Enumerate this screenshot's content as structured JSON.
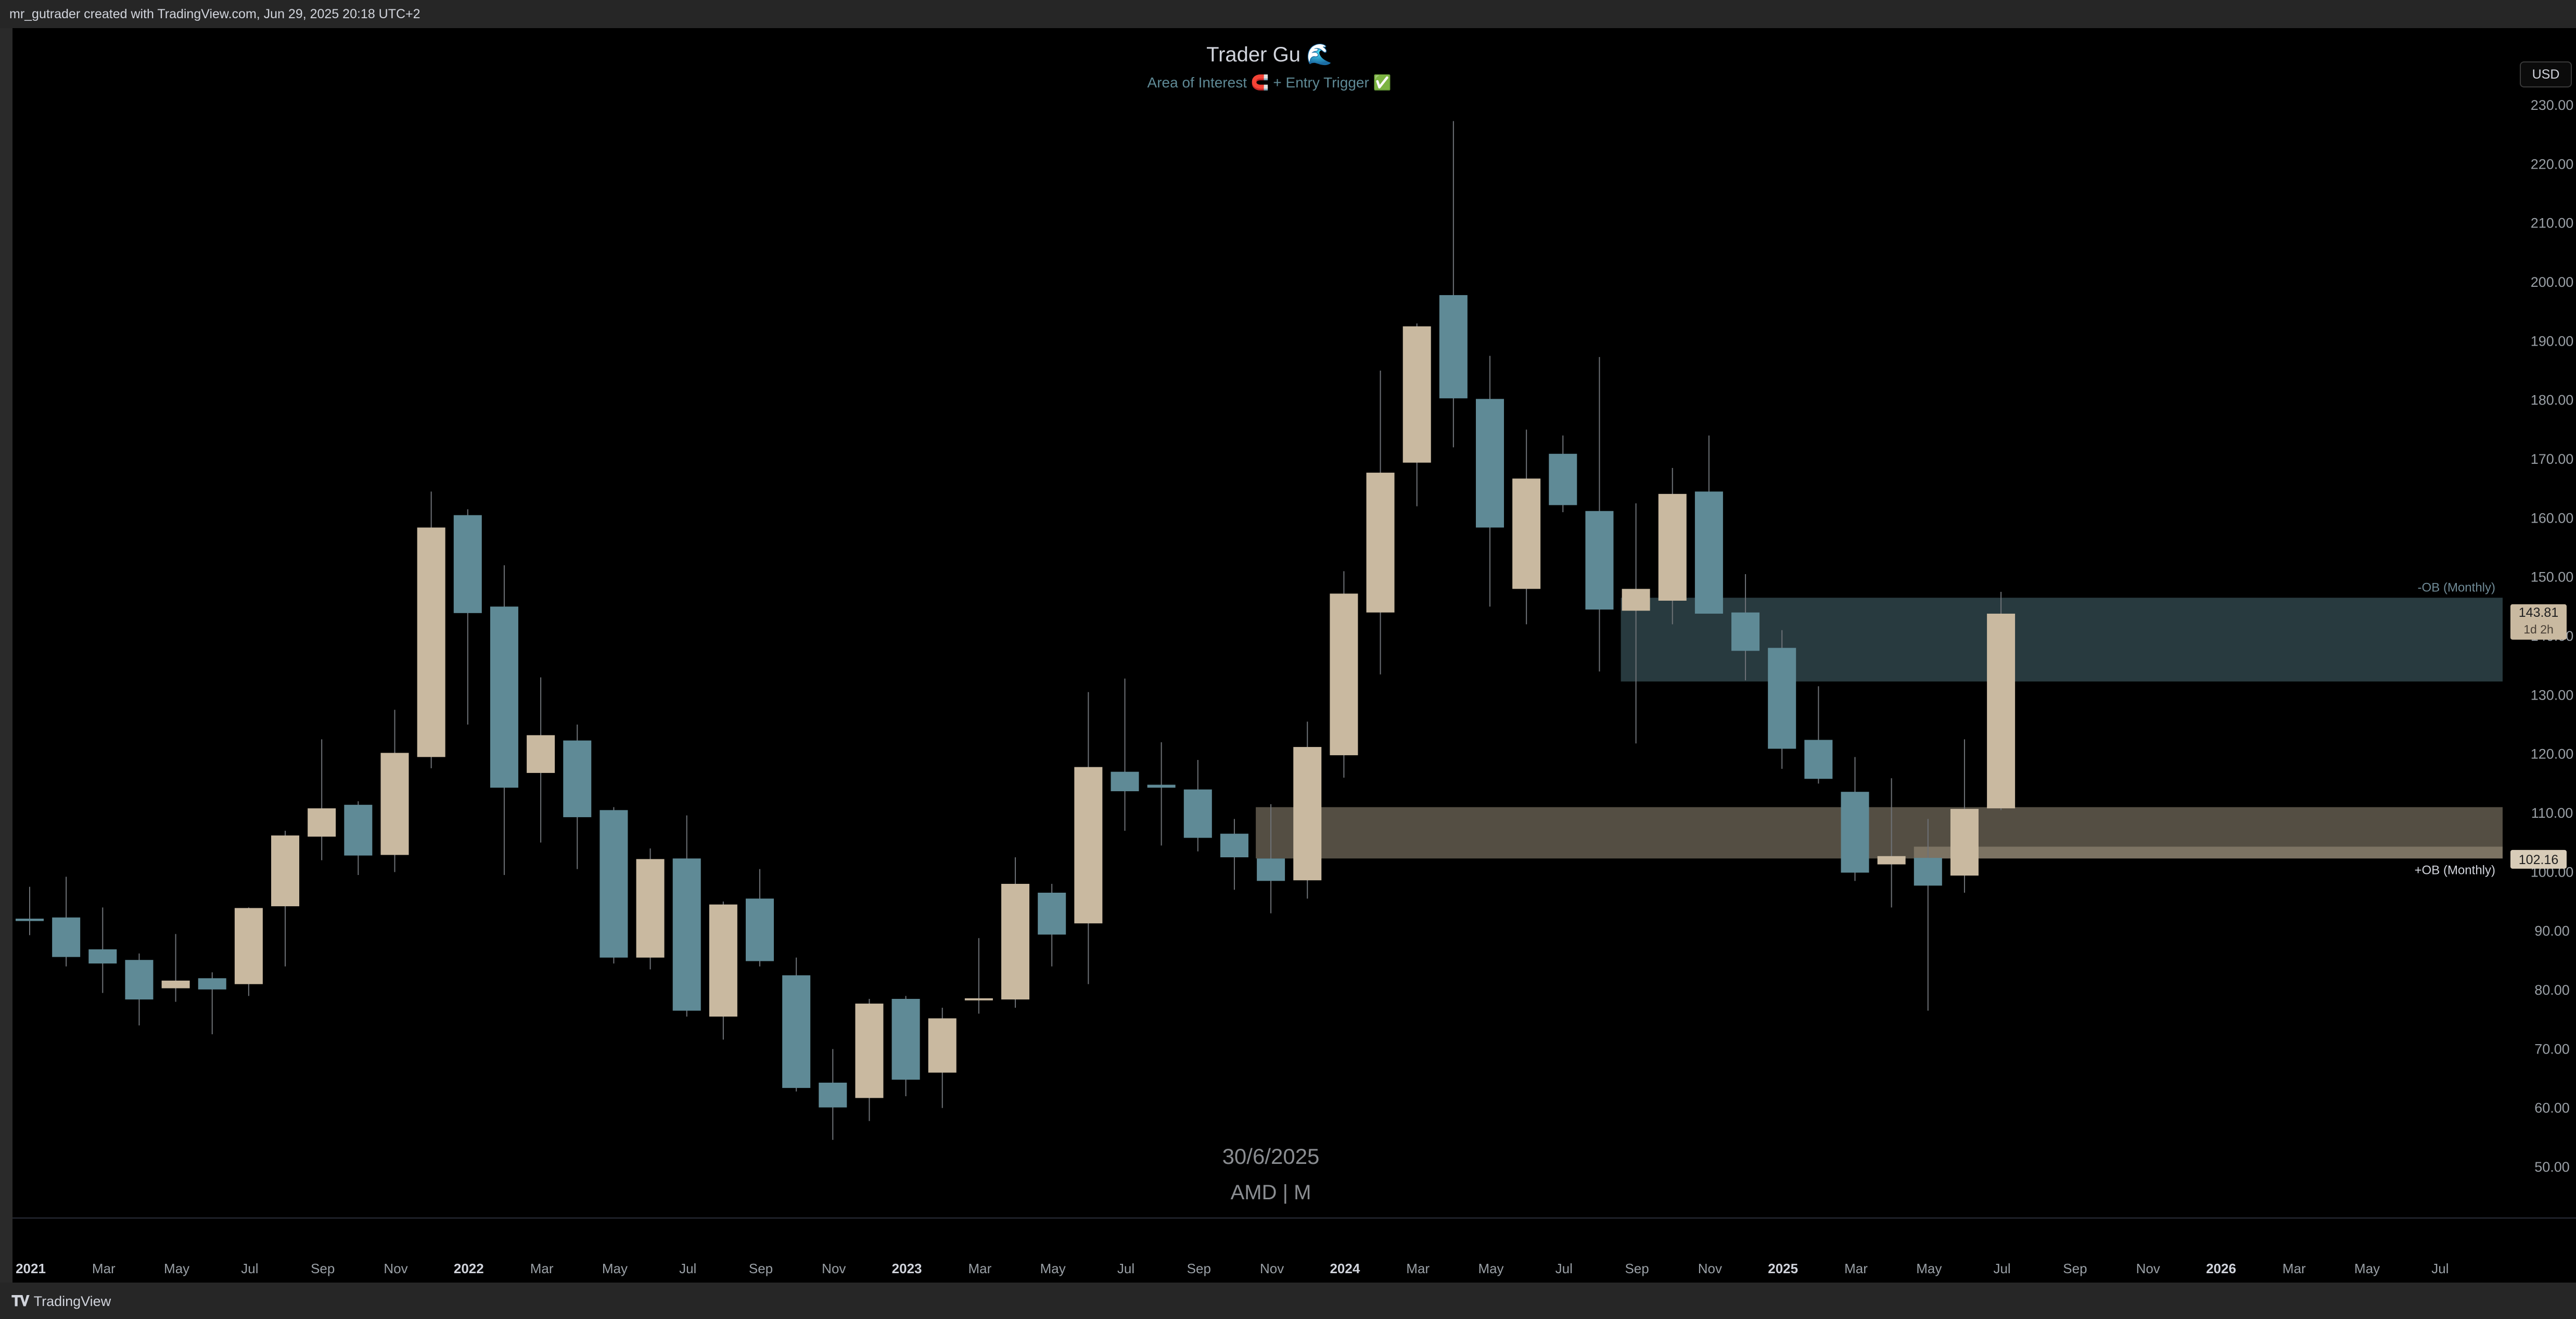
{
  "header": {
    "attribution": "mr_gutrader created with TradingView.com, Jun 29, 2025 20:18 UTC+2"
  },
  "toolbar": {
    "currency": "USD"
  },
  "footer": {
    "brand": "TradingView",
    "logo_icon": "tradingview-logo-icon"
  },
  "chart_data": {
    "type": "candlestick",
    "title": "Trader Gu 🌊",
    "subtitle": "Area of Interest 🧲 + Entry Trigger ✅",
    "watermark_date": "30/6/2025",
    "watermark_symbol": "AMD | M",
    "ylim": [
      42,
      236
    ],
    "y_ticks": [
      "50.00",
      "60.00",
      "70.00",
      "80.00",
      "90.00",
      "100.00",
      "110.00",
      "120.00",
      "130.00",
      "140.00",
      "150.00",
      "160.00",
      "170.00",
      "180.00",
      "190.00",
      "200.00",
      "210.00",
      "220.00",
      "230.00"
    ],
    "x_labels": [
      {
        "label": "2021",
        "bold": true
      },
      {
        "label": "Mar",
        "bold": false
      },
      {
        "label": "May",
        "bold": false
      },
      {
        "label": "Jul",
        "bold": false
      },
      {
        "label": "Sep",
        "bold": false
      },
      {
        "label": "Nov",
        "bold": false
      },
      {
        "label": "2022",
        "bold": true
      },
      {
        "label": "Mar",
        "bold": false
      },
      {
        "label": "May",
        "bold": false
      },
      {
        "label": "Jul",
        "bold": false
      },
      {
        "label": "Sep",
        "bold": false
      },
      {
        "label": "Nov",
        "bold": false
      },
      {
        "label": "2023",
        "bold": true
      },
      {
        "label": "Mar",
        "bold": false
      },
      {
        "label": "May",
        "bold": false
      },
      {
        "label": "Jul",
        "bold": false
      },
      {
        "label": "Sep",
        "bold": false
      },
      {
        "label": "Nov",
        "bold": false
      },
      {
        "label": "2024",
        "bold": true
      },
      {
        "label": "Mar",
        "bold": false
      },
      {
        "label": "May",
        "bold": false
      },
      {
        "label": "Jul",
        "bold": false
      },
      {
        "label": "Sep",
        "bold": false
      },
      {
        "label": "Nov",
        "bold": false
      },
      {
        "label": "2025",
        "bold": true
      },
      {
        "label": "Mar",
        "bold": false
      },
      {
        "label": "May",
        "bold": false
      },
      {
        "label": "Jul",
        "bold": false
      },
      {
        "label": "Sep",
        "bold": false
      },
      {
        "label": "Nov",
        "bold": false
      },
      {
        "label": "2026",
        "bold": true
      },
      {
        "label": "Mar",
        "bold": false
      },
      {
        "label": "May",
        "bold": false
      },
      {
        "label": "Jul",
        "bold": false
      }
    ],
    "up_color": "#c9b9a0",
    "down_color": "#5f8a96",
    "candles": [
      {
        "date": "2021-01",
        "o": 92.1,
        "h": 97.5,
        "l": 89.3,
        "c": 91.7
      },
      {
        "date": "2021-02",
        "o": 92.3,
        "h": 99.2,
        "l": 84.0,
        "c": 85.6
      },
      {
        "date": "2021-03",
        "o": 86.9,
        "h": 94.0,
        "l": 79.5,
        "c": 84.5
      },
      {
        "date": "2021-04",
        "o": 85.1,
        "h": 86.2,
        "l": 74.0,
        "c": 78.4
      },
      {
        "date": "2021-05",
        "o": 80.3,
        "h": 89.5,
        "l": 78.0,
        "c": 81.6
      },
      {
        "date": "2021-06",
        "o": 82.0,
        "h": 83.0,
        "l": 72.5,
        "c": 80.1
      },
      {
        "date": "2021-07",
        "o": 81.0,
        "h": 94.0,
        "l": 79.0,
        "c": 93.9
      },
      {
        "date": "2021-08",
        "o": 94.2,
        "h": 107.0,
        "l": 84.0,
        "c": 106.2
      },
      {
        "date": "2021-09",
        "o": 106.0,
        "h": 122.5,
        "l": 102.0,
        "c": 110.8
      },
      {
        "date": "2021-10",
        "o": 111.4,
        "h": 112.0,
        "l": 99.5,
        "c": 102.8
      },
      {
        "date": "2021-11",
        "o": 102.9,
        "h": 127.5,
        "l": 100.0,
        "c": 120.2
      },
      {
        "date": "2021-12",
        "o": 119.5,
        "h": 164.5,
        "l": 117.6,
        "c": 158.4
      },
      {
        "date": "2022-01",
        "o": 160.5,
        "h": 161.5,
        "l": 125.0,
        "c": 143.9
      },
      {
        "date": "2022-02",
        "o": 145.0,
        "h": 152.0,
        "l": 99.5,
        "c": 114.3
      },
      {
        "date": "2022-03",
        "o": 116.8,
        "h": 133.0,
        "l": 105.0,
        "c": 123.2
      },
      {
        "date": "2022-04",
        "o": 122.3,
        "h": 125.0,
        "l": 100.5,
        "c": 109.3
      },
      {
        "date": "2022-05",
        "o": 110.5,
        "h": 111.0,
        "l": 84.5,
        "c": 85.5
      },
      {
        "date": "2022-06",
        "o": 85.5,
        "h": 104.0,
        "l": 83.5,
        "c": 102.2
      },
      {
        "date": "2022-07",
        "o": 102.3,
        "h": 109.6,
        "l": 75.5,
        "c": 76.5
      },
      {
        "date": "2022-08",
        "o": 75.5,
        "h": 95.0,
        "l": 71.6,
        "c": 94.5
      },
      {
        "date": "2022-09",
        "o": 95.5,
        "h": 100.5,
        "l": 84.0,
        "c": 84.9
      },
      {
        "date": "2022-10",
        "o": 82.5,
        "h": 85.5,
        "l": 62.8,
        "c": 63.4
      },
      {
        "date": "2022-11",
        "o": 64.3,
        "h": 70.0,
        "l": 54.6,
        "c": 60.1
      },
      {
        "date": "2022-12",
        "o": 61.7,
        "h": 78.5,
        "l": 57.8,
        "c": 77.7
      },
      {
        "date": "2023-01",
        "o": 78.5,
        "h": 79.0,
        "l": 62.0,
        "c": 64.8
      },
      {
        "date": "2023-02",
        "o": 66.0,
        "h": 77.0,
        "l": 60.0,
        "c": 75.2
      },
      {
        "date": "2023-03",
        "o": 78.5,
        "h": 88.8,
        "l": 76.0,
        "c": 78.6
      },
      {
        "date": "2023-04",
        "o": 78.4,
        "h": 102.5,
        "l": 77.0,
        "c": 98.0
      },
      {
        "date": "2023-05",
        "o": 96.5,
        "h": 98.0,
        "l": 84.0,
        "c": 89.4
      },
      {
        "date": "2023-06",
        "o": 91.3,
        "h": 130.5,
        "l": 81.0,
        "c": 117.8
      },
      {
        "date": "2023-07",
        "o": 117.0,
        "h": 132.8,
        "l": 107.0,
        "c": 113.7
      },
      {
        "date": "2023-08",
        "o": 114.8,
        "h": 122.0,
        "l": 104.5,
        "c": 114.3
      },
      {
        "date": "2023-09",
        "o": 114.0,
        "h": 119.0,
        "l": 103.5,
        "c": 105.8
      },
      {
        "date": "2023-10",
        "o": 106.5,
        "h": 109.0,
        "l": 97.0,
        "c": 102.5
      },
      {
        "date": "2023-11",
        "o": 102.3,
        "h": 111.5,
        "l": 93.0,
        "c": 98.5
      },
      {
        "date": "2023-12",
        "o": 98.6,
        "h": 125.5,
        "l": 95.5,
        "c": 121.2
      },
      {
        "date": "2024-01",
        "o": 119.8,
        "h": 151.0,
        "l": 116.0,
        "c": 147.2
      },
      {
        "date": "2024-02",
        "o": 144.0,
        "h": 185.0,
        "l": 133.5,
        "c": 167.7
      },
      {
        "date": "2024-03",
        "o": 169.4,
        "h": 193.0,
        "l": 162.0,
        "c": 192.5
      },
      {
        "date": "2024-04",
        "o": 197.8,
        "h": 227.3,
        "l": 172.0,
        "c": 180.3
      },
      {
        "date": "2024-05",
        "o": 180.2,
        "h": 187.5,
        "l": 145.0,
        "c": 158.4
      },
      {
        "date": "2024-06",
        "o": 148.0,
        "h": 175.0,
        "l": 142.0,
        "c": 166.7
      },
      {
        "date": "2024-07",
        "o": 170.9,
        "h": 174.0,
        "l": 161.0,
        "c": 162.2
      },
      {
        "date": "2024-08",
        "o": 161.2,
        "h": 187.3,
        "l": 134.0,
        "c": 144.5
      },
      {
        "date": "2024-09",
        "o": 144.3,
        "h": 162.5,
        "l": 121.8,
        "c": 148.0
      },
      {
        "date": "2024-10",
        "o": 146.0,
        "h": 168.5,
        "l": 142.0,
        "c": 164.1
      },
      {
        "date": "2024-11",
        "o": 164.5,
        "h": 174.0,
        "l": 144.0,
        "c": 143.8
      },
      {
        "date": "2024-12",
        "o": 144.0,
        "h": 150.5,
        "l": 132.5,
        "c": 137.5
      },
      {
        "date": "2025-01",
        "o": 138.0,
        "h": 141.0,
        "l": 117.5,
        "c": 120.9
      },
      {
        "date": "2025-02",
        "o": 122.4,
        "h": 131.5,
        "l": 115.0,
        "c": 115.8
      },
      {
        "date": "2025-03",
        "o": 113.6,
        "h": 119.5,
        "l": 98.5,
        "c": 99.9
      },
      {
        "date": "2025-04",
        "o": 101.3,
        "h": 115.9,
        "l": 94.0,
        "c": 102.7
      },
      {
        "date": "2025-05",
        "o": 102.4,
        "h": 109.0,
        "l": 76.5,
        "c": 97.7
      },
      {
        "date": "2025-06",
        "o": 99.4,
        "h": 122.5,
        "l": 96.5,
        "c": 110.7
      },
      {
        "date": "2025-07",
        "o": 110.8,
        "h": 147.5,
        "l": 110.5,
        "c": 143.8
      }
    ],
    "zones": [
      {
        "name": "-OB (Monthly)",
        "start": "2024-09",
        "top": 146.5,
        "bottom": 132.3,
        "color": "#5f8a96"
      },
      {
        "name": "+OB (Monthly)",
        "start": "2023-11",
        "top": 111.0,
        "bottom": 102.3,
        "color": "#c9b9a0"
      }
    ],
    "price_label": {
      "value": "143.81",
      "countdown": "1d 2h"
    },
    "secondary_label": {
      "value": "102.16"
    }
  }
}
